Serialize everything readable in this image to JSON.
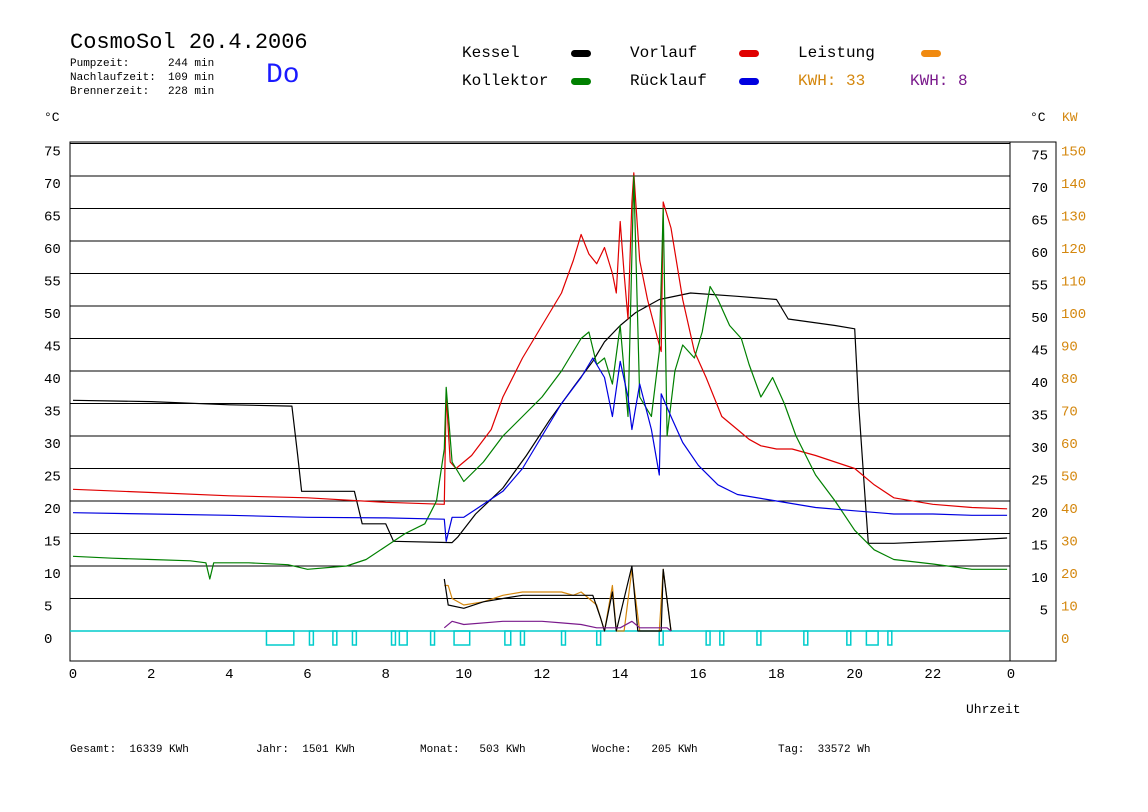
{
  "header": {
    "title": "CosmoSol 20.4.2006",
    "day": "Do",
    "stats": [
      {
        "label": "Pumpzeit:",
        "value": "244 min"
      },
      {
        "label": "Nachlaufzeit:",
        "value": "109 min"
      },
      {
        "label": "Brennerzeit:",
        "value": "228 min"
      }
    ]
  },
  "legend": {
    "items": [
      {
        "label": "Kessel",
        "color": "#000000"
      },
      {
        "label": "Vorlauf",
        "color": "#e00000"
      },
      {
        "label": "Leistung",
        "color": "#f08a10"
      },
      {
        "label": "Kollektor",
        "color": "#008000"
      },
      {
        "label": "Rücklauf",
        "color": "#0000e0"
      }
    ],
    "kwh1": {
      "label": "KWH:",
      "value": "33",
      "color": "#d4870e"
    },
    "kwh2": {
      "label": "KWH:",
      "value": "8",
      "color": "#7a1a8c"
    }
  },
  "axis_units": {
    "left": "°C",
    "right_c": "°C",
    "right_kw": "KW",
    "xlabel": "Uhrzeit"
  },
  "footer": [
    {
      "label": "Gesamt:",
      "value": "16339 KWh"
    },
    {
      "label": "Jahr:",
      "value": "1501 KWh"
    },
    {
      "label": "Monat:",
      "value": "503 KWh"
    },
    {
      "label": "Woche:",
      "value": "205 KWh"
    },
    {
      "label": "Tag:",
      "value": "33572 Wh"
    }
  ],
  "chart_data": {
    "type": "line",
    "title": "CosmoSol 20.4.2006",
    "xlabel": "Uhrzeit",
    "ylabel": "°C",
    "xlim": [
      0,
      24
    ],
    "ylim": [
      0,
      75
    ],
    "grid": true,
    "x_tick_labels": [
      "0",
      "2",
      "4",
      "6",
      "8",
      "10",
      "12",
      "14",
      "16",
      "18",
      "20",
      "22",
      "0"
    ],
    "y_left_ticks": [
      "0",
      "5",
      "10",
      "15",
      "20",
      "25",
      "30",
      "35",
      "40",
      "45",
      "50",
      "55",
      "60",
      "65",
      "70",
      "75"
    ],
    "y_right_c_ticks": [
      "5",
      "10",
      "15",
      "20",
      "25",
      "30",
      "35",
      "40",
      "45",
      "50",
      "55",
      "60",
      "65",
      "70",
      "75"
    ],
    "y_right_kw_ticks": [
      "0",
      "10",
      "20",
      "30",
      "40",
      "50",
      "60",
      "70",
      "80",
      "90",
      "100",
      "110",
      "120",
      "130",
      "140",
      "150"
    ],
    "series": [
      {
        "name": "Kessel",
        "color": "#000000",
        "points": [
          [
            0,
            35.5
          ],
          [
            2,
            35.3
          ],
          [
            4,
            34.8
          ],
          [
            5.6,
            34.6
          ],
          [
            5.75,
            27
          ],
          [
            5.85,
            21.5
          ],
          [
            6.5,
            21.5
          ],
          [
            7.2,
            21.5
          ],
          [
            7.4,
            16.5
          ],
          [
            8,
            16.5
          ],
          [
            8.2,
            13.8
          ],
          [
            9.7,
            13.6
          ],
          [
            9.85,
            14.5
          ],
          [
            10.3,
            18
          ],
          [
            11,
            22
          ],
          [
            11.6,
            27
          ],
          [
            12.2,
            32.5
          ],
          [
            12.8,
            37.5
          ],
          [
            13.3,
            41.5
          ],
          [
            13.6,
            44.5
          ],
          [
            14,
            47
          ],
          [
            14.4,
            49
          ],
          [
            15,
            51
          ],
          [
            15.8,
            52
          ],
          [
            17,
            51.5
          ],
          [
            18,
            51
          ],
          [
            18.3,
            48
          ],
          [
            19.5,
            47
          ],
          [
            20,
            46.5
          ],
          [
            20.1,
            35
          ],
          [
            20.25,
            22
          ],
          [
            20.35,
            13.5
          ],
          [
            21,
            13.5
          ],
          [
            23,
            14
          ],
          [
            23.9,
            14.3
          ]
        ]
      },
      {
        "name": "Vorlauf",
        "color": "#e00000",
        "points": [
          [
            0,
            21.8
          ],
          [
            2,
            21.3
          ],
          [
            4,
            20.8
          ],
          [
            6,
            20.5
          ],
          [
            8,
            19.8
          ],
          [
            9.5,
            19.5
          ],
          [
            9.55,
            36.5
          ],
          [
            9.65,
            26
          ],
          [
            9.8,
            25
          ],
          [
            10.2,
            27
          ],
          [
            10.7,
            31
          ],
          [
            11,
            36
          ],
          [
            11.5,
            42
          ],
          [
            12,
            47
          ],
          [
            12.5,
            52
          ],
          [
            12.8,
            57
          ],
          [
            13,
            61
          ],
          [
            13.2,
            58
          ],
          [
            13.4,
            56.5
          ],
          [
            13.6,
            59
          ],
          [
            13.8,
            55
          ],
          [
            13.9,
            52
          ],
          [
            14,
            63
          ],
          [
            14.1,
            55
          ],
          [
            14.2,
            48
          ],
          [
            14.3,
            66
          ],
          [
            14.35,
            70.5
          ],
          [
            14.5,
            57
          ],
          [
            14.7,
            51
          ],
          [
            15,
            44
          ],
          [
            15.05,
            43
          ],
          [
            15.1,
            66
          ],
          [
            15.3,
            62
          ],
          [
            15.6,
            51
          ],
          [
            15.9,
            43
          ],
          [
            16.2,
            39
          ],
          [
            16.6,
            33
          ],
          [
            17,
            31
          ],
          [
            17.3,
            29.5
          ],
          [
            17.6,
            28.5
          ],
          [
            18,
            28
          ],
          [
            18.4,
            28
          ],
          [
            19,
            27
          ],
          [
            19.5,
            26
          ],
          [
            20,
            25
          ],
          [
            20.5,
            22.5
          ],
          [
            21,
            20.5
          ],
          [
            22,
            19.5
          ],
          [
            23,
            19
          ],
          [
            23.9,
            18.8
          ]
        ]
      },
      {
        "name": "Kollektor",
        "color": "#008000",
        "points": [
          [
            0,
            11.5
          ],
          [
            1,
            11.2
          ],
          [
            2,
            11
          ],
          [
            3,
            10.8
          ],
          [
            3.4,
            10.5
          ],
          [
            3.5,
            8
          ],
          [
            3.6,
            10.5
          ],
          [
            4.5,
            10.5
          ],
          [
            5.5,
            10.2
          ],
          [
            6,
            9.5
          ],
          [
            7,
            10
          ],
          [
            7.5,
            11
          ],
          [
            8,
            13
          ],
          [
            8.5,
            15
          ],
          [
            9,
            16.5
          ],
          [
            9.3,
            20
          ],
          [
            9.5,
            28
          ],
          [
            9.55,
            37.5
          ],
          [
            9.7,
            26
          ],
          [
            10,
            23
          ],
          [
            10.5,
            26
          ],
          [
            11,
            30
          ],
          [
            11.5,
            33
          ],
          [
            12,
            36
          ],
          [
            12.5,
            40
          ],
          [
            13,
            45
          ],
          [
            13.2,
            46
          ],
          [
            13.4,
            41
          ],
          [
            13.6,
            42
          ],
          [
            13.8,
            38
          ],
          [
            14,
            47
          ],
          [
            14.2,
            33
          ],
          [
            14.35,
            70
          ],
          [
            14.5,
            36
          ],
          [
            14.8,
            33
          ],
          [
            15,
            43
          ],
          [
            15.1,
            65
          ],
          [
            15.2,
            30
          ],
          [
            15.4,
            40
          ],
          [
            15.6,
            44
          ],
          [
            15.9,
            42
          ],
          [
            16.1,
            46
          ],
          [
            16.3,
            53
          ],
          [
            16.5,
            51
          ],
          [
            16.8,
            47
          ],
          [
            17.1,
            45
          ],
          [
            17.3,
            41
          ],
          [
            17.6,
            36
          ],
          [
            17.9,
            39
          ],
          [
            18.2,
            35
          ],
          [
            18.5,
            30
          ],
          [
            19,
            24
          ],
          [
            19.5,
            20
          ],
          [
            20,
            15.5
          ],
          [
            20.5,
            12.5
          ],
          [
            21,
            11
          ],
          [
            22,
            10.3
          ],
          [
            23,
            9.5
          ],
          [
            23.9,
            9.5
          ]
        ]
      },
      {
        "name": "Rücklauf",
        "color": "#0000e0",
        "points": [
          [
            0,
            18.2
          ],
          [
            2,
            18
          ],
          [
            4,
            17.8
          ],
          [
            6,
            17.5
          ],
          [
            8,
            17.4
          ],
          [
            9.5,
            17.2
          ],
          [
            9.55,
            13.8
          ],
          [
            9.7,
            17.5
          ],
          [
            10,
            17.5
          ],
          [
            10.5,
            19.5
          ],
          [
            11,
            21.5
          ],
          [
            11.5,
            25
          ],
          [
            12,
            30
          ],
          [
            12.5,
            35
          ],
          [
            13,
            39
          ],
          [
            13.3,
            42
          ],
          [
            13.6,
            39
          ],
          [
            13.8,
            33
          ],
          [
            14,
            41.5
          ],
          [
            14.2,
            36
          ],
          [
            14.3,
            31
          ],
          [
            14.5,
            38
          ],
          [
            14.8,
            31
          ],
          [
            15,
            24
          ],
          [
            15.05,
            36.5
          ],
          [
            15.3,
            33
          ],
          [
            15.6,
            29
          ],
          [
            16,
            25.5
          ],
          [
            16.5,
            22.5
          ],
          [
            17,
            21
          ],
          [
            18,
            20
          ],
          [
            19,
            19
          ],
          [
            20,
            18.5
          ],
          [
            21,
            18
          ],
          [
            22,
            18
          ],
          [
            23,
            17.8
          ],
          [
            23.9,
            17.8
          ]
        ]
      },
      {
        "name": "Leistung",
        "color": "#d4870e",
        "axis": "kw",
        "points": [
          [
            9.5,
            14
          ],
          [
            9.6,
            14
          ],
          [
            9.7,
            10
          ],
          [
            10,
            8
          ],
          [
            10.5,
            9
          ],
          [
            11,
            11
          ],
          [
            11.5,
            12
          ],
          [
            12,
            12
          ],
          [
            12.5,
            12
          ],
          [
            12.8,
            11
          ],
          [
            13,
            12
          ],
          [
            13.4,
            8
          ],
          [
            13.6,
            0
          ],
          [
            13.8,
            14
          ],
          [
            13.9,
            0
          ],
          [
            14.1,
            0
          ],
          [
            14.3,
            19
          ],
          [
            14.5,
            0
          ],
          [
            15,
            0
          ],
          [
            15.1,
            19
          ],
          [
            15.3,
            0
          ]
        ]
      },
      {
        "name": "Leistung Kessel",
        "color": "#000000",
        "axis": "kw",
        "points": [
          [
            9.5,
            16
          ],
          [
            9.6,
            8
          ],
          [
            10,
            7
          ],
          [
            10.5,
            9
          ],
          [
            11,
            10
          ],
          [
            11.5,
            11
          ],
          [
            12,
            11
          ],
          [
            12.5,
            11
          ],
          [
            13,
            11
          ],
          [
            13.3,
            11
          ],
          [
            13.5,
            4
          ],
          [
            13.6,
            0
          ],
          [
            13.8,
            12
          ],
          [
            13.9,
            0
          ],
          [
            14.3,
            20
          ],
          [
            14.45,
            0
          ],
          [
            15.05,
            0
          ],
          [
            15.1,
            19
          ],
          [
            15.3,
            0
          ]
        ]
      },
      {
        "name": "Leistung Kollektor",
        "color": "#7a1a8c",
        "axis": "kw",
        "points": [
          [
            9.5,
            1
          ],
          [
            9.7,
            3
          ],
          [
            10,
            2
          ],
          [
            11,
            3
          ],
          [
            11.5,
            3
          ],
          [
            12,
            3
          ],
          [
            12.5,
            2.5
          ],
          [
            13,
            2
          ],
          [
            13.4,
            1
          ],
          [
            14,
            1
          ],
          [
            14.3,
            3
          ],
          [
            14.5,
            1
          ],
          [
            15,
            1
          ],
          [
            15.2,
            1
          ],
          [
            15.3,
            0
          ]
        ]
      }
    ],
    "pump_intervals": [
      [
        4.95,
        5.65
      ],
      [
        6.05,
        6.15
      ],
      [
        6.65,
        6.75
      ],
      [
        7.15,
        7.25
      ],
      [
        8.15,
        8.25
      ],
      [
        8.35,
        8.55
      ],
      [
        9.15,
        9.25
      ],
      [
        9.75,
        10.15
      ],
      [
        11.05,
        11.2
      ],
      [
        11.45,
        11.55
      ],
      [
        12.5,
        12.6
      ],
      [
        13.4,
        13.5
      ],
      [
        15.0,
        15.1
      ],
      [
        16.2,
        16.3
      ],
      [
        16.55,
        16.65
      ],
      [
        17.5,
        17.6
      ],
      [
        18.7,
        18.8
      ],
      [
        19.8,
        19.9
      ],
      [
        20.3,
        20.6
      ],
      [
        20.85,
        20.95
      ]
    ]
  }
}
